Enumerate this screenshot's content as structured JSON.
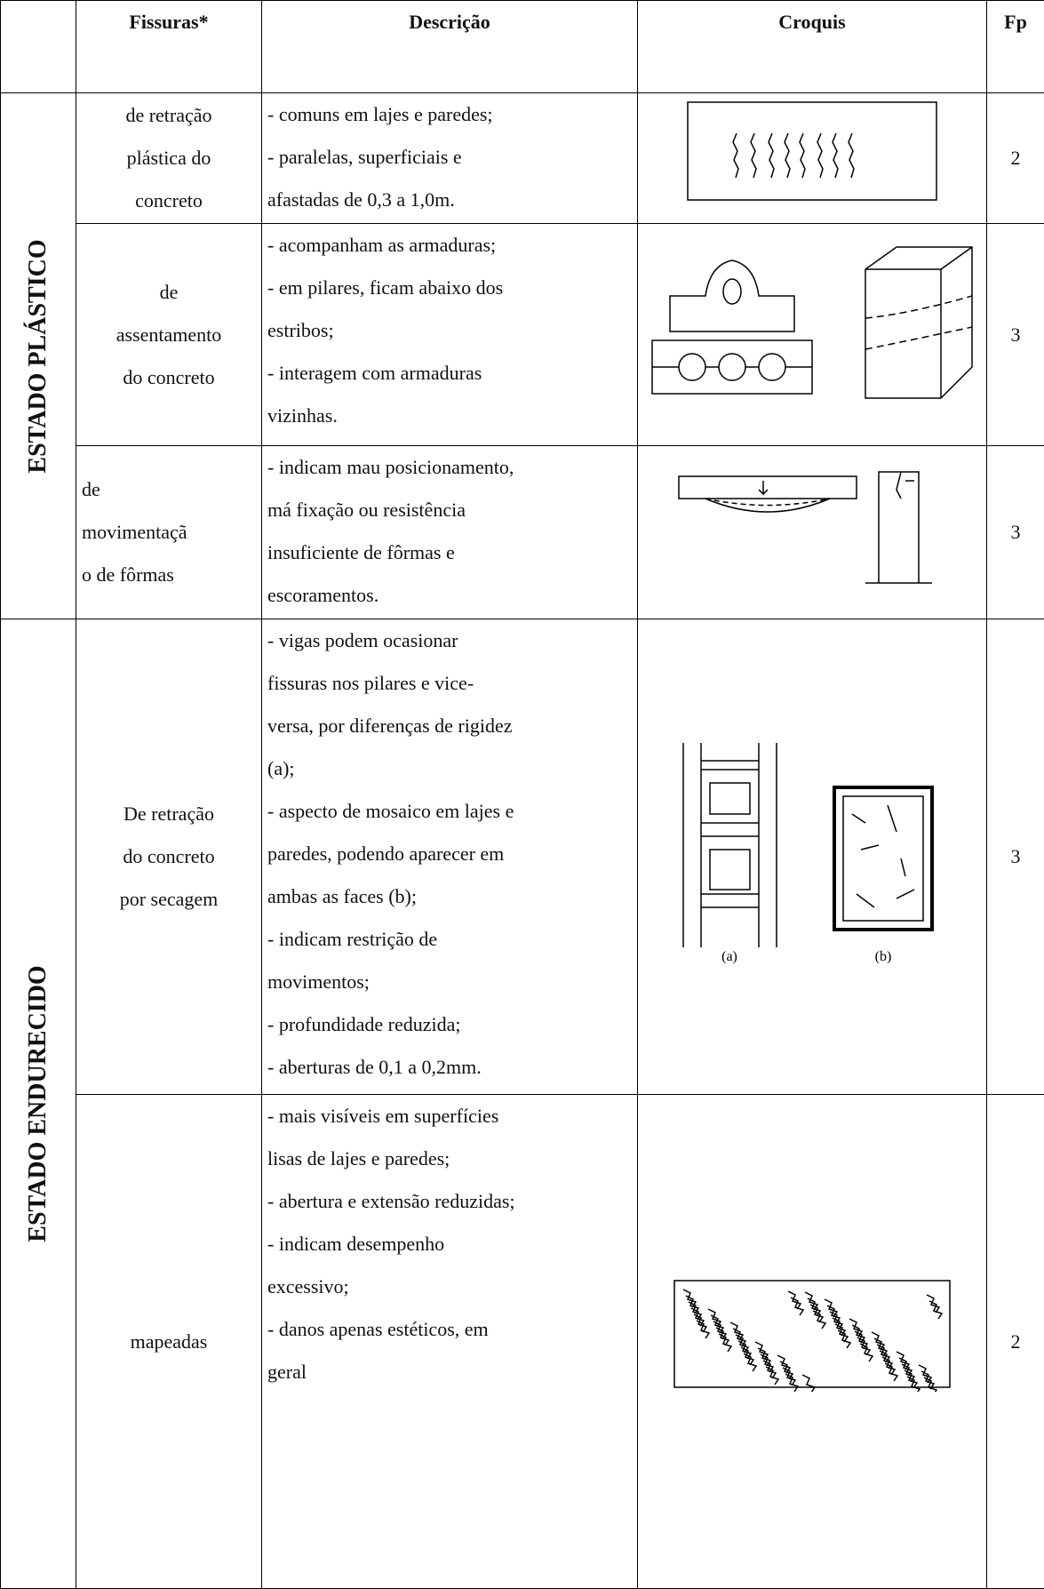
{
  "header": [
    "Fissuras*",
    "Descrição",
    "Croquis",
    "Fp"
  ],
  "groups": [
    {
      "label": "ESTADO PLÁSTICO",
      "rows": [
        {
          "fissura": [
            "de retração",
            "plástica do",
            "concreto"
          ],
          "descricao": [
            "- comuns em lajes e paredes;",
            "- paralelas, superficiais e",
            "afastadas de 0,3 a 1,0m."
          ],
          "fp": "2"
        },
        {
          "fissura": [
            "de",
            "assentamento",
            "do concreto"
          ],
          "descricao": [
            "- acompanham as armaduras;",
            "- em pilares, ficam abaixo dos",
            "estribos;",
            "- interagem com armaduras",
            "vizinhas."
          ],
          "fp": "3"
        },
        {
          "fissura": [
            "de",
            "movimentaçã",
            "o de fôrmas"
          ],
          "descricao": [
            "- indicam mau posicionamento,",
            "má fixação ou resistência",
            "insuficiente de fôrmas e",
            "escoramentos."
          ],
          "fp": "3"
        }
      ]
    },
    {
      "label": "ESTADO ENDURECIDO",
      "rows": [
        {
          "fissura": [
            "De retração",
            "do concreto",
            "por secagem"
          ],
          "descricao": [
            "- vigas podem ocasionar",
            "fissuras nos pilares e vice-",
            "versa, por diferenças de rigidez",
            "(a);",
            "- aspecto de mosaico em lajes e",
            "paredes, podendo aparecer em",
            "ambas as faces (b);",
            "- indicam restrição de",
            "movimentos;",
            "- profundidade reduzida;",
            "- aberturas de 0,1 a 0,2mm."
          ],
          "fp": "3",
          "sketch_labels": [
            "(a)",
            "(b)"
          ]
        },
        {
          "fissura": [
            "mapeadas"
          ],
          "descricao": [
            "- mais visíveis em superfícies",
            "lisas de lajes e paredes;",
            "- abertura e extensão reduzidas;",
            "- indicam desempenho",
            "excessivo;",
            "- danos apenas estéticos, em",
            "geral"
          ],
          "fp": "2"
        }
      ]
    }
  ]
}
